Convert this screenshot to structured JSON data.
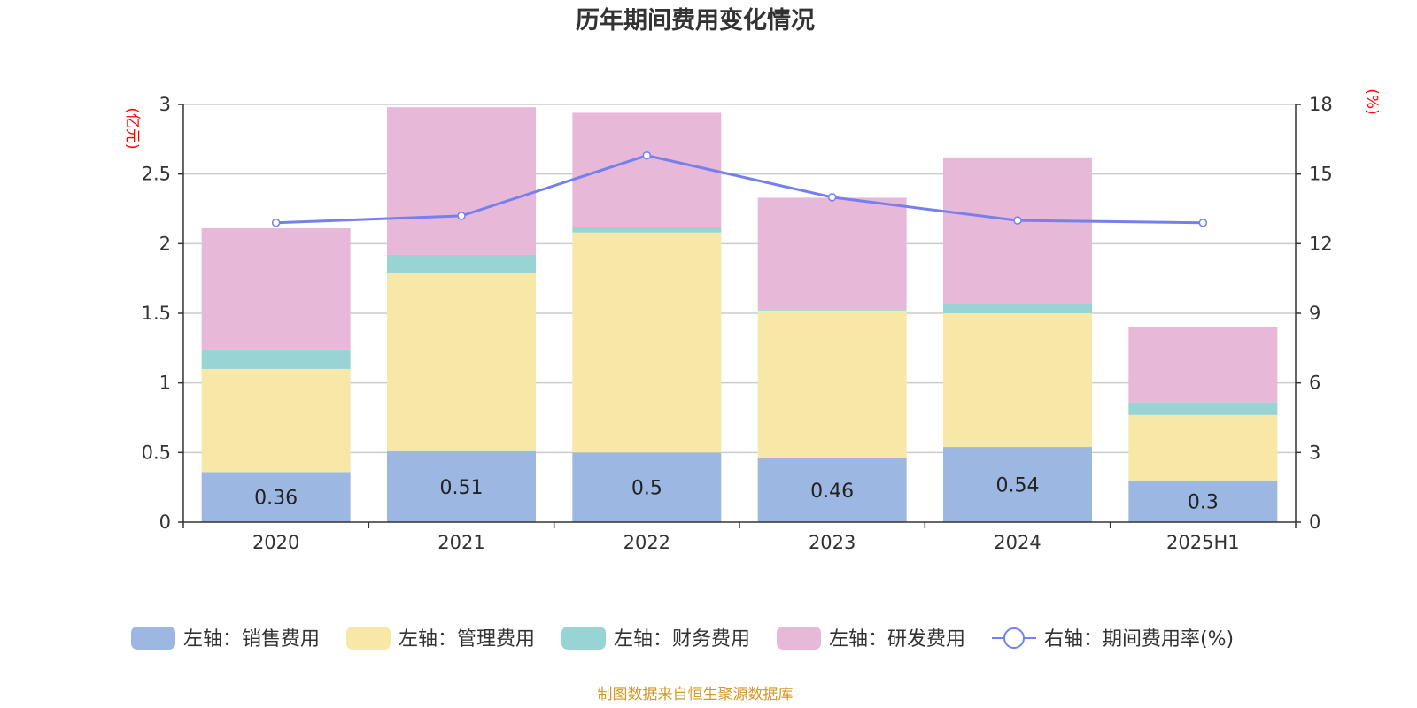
{
  "chart_data": {
    "type": "bar",
    "title": "历年期间费用变化情况",
    "categories": [
      "2020",
      "2021",
      "2022",
      "2023",
      "2024",
      "2025H1"
    ],
    "stacked": true,
    "series": [
      {
        "name": "左轴：销售费用",
        "axis": "left",
        "color": "#9cb8e2",
        "values": [
          0.36,
          0.51,
          0.5,
          0.46,
          0.54,
          0.3
        ],
        "show_labels": true
      },
      {
        "name": "左轴：管理费用",
        "axis": "left",
        "color": "#f8e8a8",
        "values": [
          0.74,
          1.28,
          1.58,
          1.06,
          0.96,
          0.47
        ],
        "show_labels": false
      },
      {
        "name": "左轴：财务费用",
        "axis": "left",
        "color": "#98d4d4",
        "values": [
          0.14,
          0.13,
          0.04,
          0.01,
          0.07,
          0.09
        ],
        "show_labels": false
      },
      {
        "name": "左轴：研发费用",
        "axis": "left",
        "color": "#e8b8d8",
        "values": [
          0.87,
          1.06,
          0.82,
          0.8,
          1.05,
          0.54
        ],
        "show_labels": false
      },
      {
        "name": "右轴：期间费用率(%)",
        "type": "line",
        "axis": "right",
        "color": "#7580ee",
        "values": [
          12.9,
          13.2,
          15.8,
          14.0,
          13.0,
          12.9
        ]
      }
    ],
    "y_left": {
      "unit": "(亿元)",
      "range": [
        0,
        3
      ],
      "ticks": [
        "0",
        "0.5",
        "1",
        "1.5",
        "2",
        "2.5",
        "3"
      ]
    },
    "y_right": {
      "unit": "(%)",
      "range": [
        0,
        18
      ],
      "ticks": [
        "0",
        "3",
        "6",
        "9",
        "12",
        "15",
        "18"
      ]
    },
    "grid": true,
    "legend_position": "bottom"
  },
  "source": "制图数据来自恒生聚源数据库"
}
